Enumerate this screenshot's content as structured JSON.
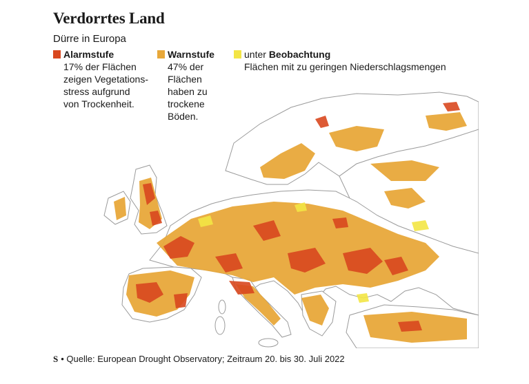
{
  "title": "Verdorrtes Land",
  "subtitle": "Dürre in Europa",
  "legend": [
    {
      "prefix": "",
      "label": "Alarmstufe",
      "desc": "17% der Flächen\nzeigen Vegetations-\nstress aufgrund\nvon Trockenheit.",
      "color": "#d9481f"
    },
    {
      "prefix": "",
      "label": "Warnstufe",
      "desc": "47% der\nFlächen\nhaben zu\ntrockene\nBöden.",
      "color": "#e8a83a"
    },
    {
      "prefix": "unter ",
      "label": "Beobachtung",
      "desc": "Flächen mit zu geringen Niederschlagsmengen",
      "color": "#f3e545"
    }
  ],
  "footer": {
    "logo": "S",
    "separator": "•",
    "text": "Quelle: European Drought Observatory; Zeitraum 20. bis 30. Juli 2022"
  },
  "colors": {
    "land": "#ffffff",
    "sea": "#ffffff",
    "border": "#9a9a9a",
    "alarm": "#d9481f",
    "warn": "#e8a83a",
    "watch": "#f3e545"
  }
}
